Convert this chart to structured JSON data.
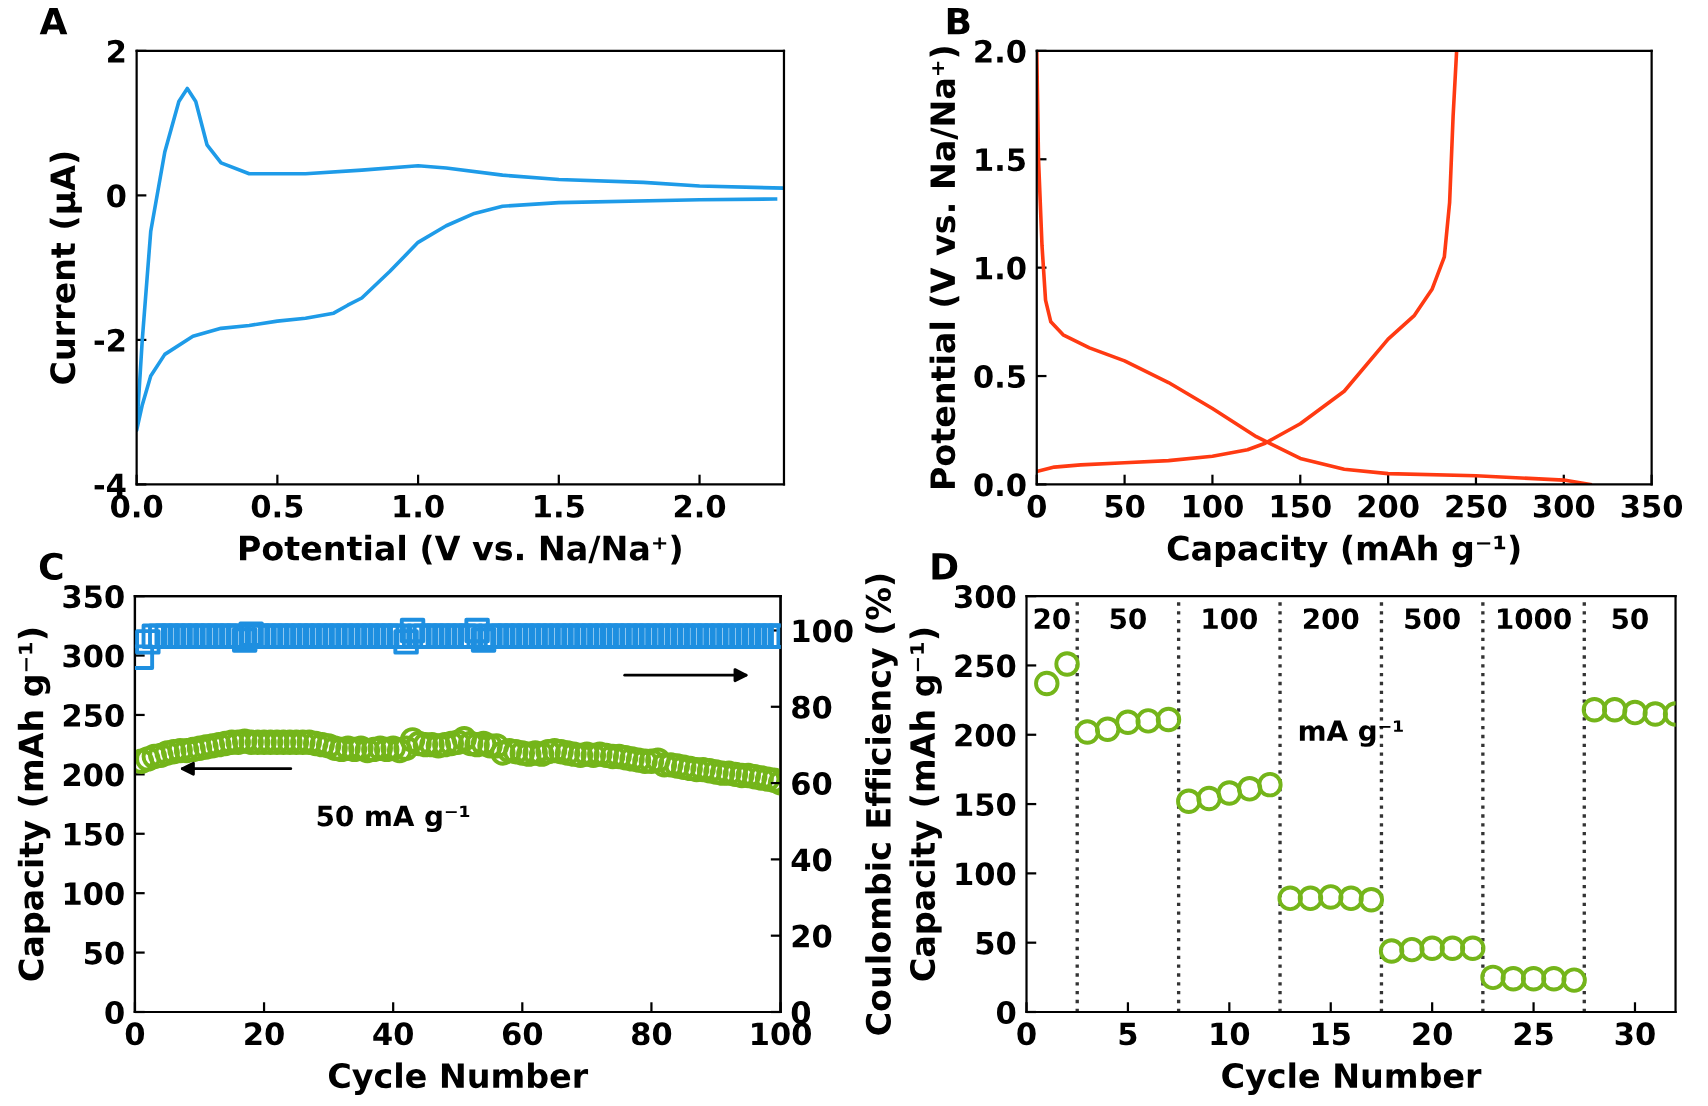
{
  "chart_data": [
    {
      "type": "line",
      "title": "A",
      "xlabel": "Potential (V vs. Na/Na⁺)",
      "ylabel": "Current (μA)",
      "xlim": [
        0,
        2.3
      ],
      "ylim": [
        -4,
        2
      ],
      "xticks": [
        {
          "value": 0,
          "label": "0.0"
        },
        {
          "value": 0.5,
          "label": "0.5"
        },
        {
          "value": 1,
          "label": "1.0"
        },
        {
          "value": 1.5,
          "label": "1.5"
        },
        {
          "value": 2,
          "label": "2.0"
        }
      ],
      "yticks": [
        -4,
        -2,
        0,
        2
      ],
      "grid": false,
      "legend": false,
      "line_style": "solid",
      "series": [
        {
          "color": "#1e9be8",
          "x": [
            2.27,
            2.0,
            1.5,
            1.3,
            1.2,
            1.1,
            1.0,
            0.9,
            0.8,
            0.75,
            0.7,
            0.6,
            0.5,
            0.4,
            0.3,
            0.2,
            0.1,
            0.05,
            0.02,
            0.0,
            0.02,
            0.05,
            0.1,
            0.15,
            0.18,
            0.21,
            0.25,
            0.3,
            0.4,
            0.6,
            0.8,
            1.0,
            1.1,
            1.3,
            1.5,
            1.8,
            2.0,
            2.3
          ],
          "values": [
            -0.05,
            -0.06,
            -0.1,
            -0.15,
            -0.25,
            -0.42,
            -0.65,
            -1.05,
            -1.42,
            -1.52,
            -1.63,
            -1.7,
            -1.74,
            -1.8,
            -1.84,
            -1.95,
            -2.2,
            -2.5,
            -2.9,
            -3.25,
            -2.0,
            -0.5,
            0.6,
            1.3,
            1.48,
            1.3,
            0.7,
            0.45,
            0.3,
            0.3,
            0.35,
            0.41,
            0.38,
            0.28,
            0.22,
            0.18,
            0.13,
            0.1
          ]
        }
      ]
    },
    {
      "type": "line",
      "title": "B",
      "xlabel": "Capacity (mAh g⁻¹)",
      "ylabel": "Potential (V vs. Na/Na⁺)",
      "xlim": [
        0,
        350
      ],
      "ylim": [
        0,
        2
      ],
      "xticks": [
        0,
        50,
        100,
        150,
        200,
        250,
        300,
        350
      ],
      "yticks": [
        {
          "value": 0,
          "label": "0.0"
        },
        {
          "value": 0.5,
          "label": "0.5"
        },
        {
          "value": 1,
          "label": "1.0"
        },
        {
          "value": 1.5,
          "label": "1.5"
        },
        {
          "value": 2,
          "label": "2.0"
        }
      ],
      "grid": false,
      "legend": false,
      "line_style": "solid",
      "series": [
        {
          "color": "#ff3a12",
          "x": [
            0,
            1,
            3,
            5,
            8,
            15,
            30,
            50,
            75,
            100,
            125,
            150,
            175,
            200,
            250,
            300,
            315
          ],
          "values": [
            2.0,
            1.5,
            1.1,
            0.85,
            0.75,
            0.69,
            0.63,
            0.57,
            0.47,
            0.35,
            0.22,
            0.12,
            0.07,
            0.05,
            0.04,
            0.02,
            0.0
          ]
        },
        {
          "color": "#ff3a12",
          "x": [
            0,
            10,
            25,
            50,
            75,
            100,
            120,
            130,
            150,
            175,
            200,
            215,
            225,
            232,
            235,
            237,
            239
          ],
          "values": [
            0.06,
            0.08,
            0.09,
            0.1,
            0.11,
            0.13,
            0.16,
            0.19,
            0.28,
            0.43,
            0.67,
            0.78,
            0.9,
            1.05,
            1.3,
            1.7,
            2.0
          ]
        }
      ]
    },
    {
      "type": "scatter",
      "title": "C",
      "xlabel": "Cycle Number",
      "ylabel": "Capacity (mAh g⁻¹)",
      "y2label": "Coulombic Efficiency (%)",
      "xlim": [
        0,
        100
      ],
      "ylim": [
        0,
        350
      ],
      "y2lim": [
        0,
        109
      ],
      "xticks": [
        0,
        20,
        40,
        60,
        80,
        100
      ],
      "yticks": [
        0,
        50,
        100,
        150,
        200,
        250,
        300,
        350
      ],
      "y2ticks": [
        0,
        20,
        40,
        60,
        80,
        100
      ],
      "grid": false,
      "legend": false,
      "annotations": [
        "50 mA g⁻¹"
      ],
      "x": [
        1,
        2,
        3,
        4,
        5,
        6,
        7,
        8,
        9,
        10,
        11,
        12,
        13,
        14,
        15,
        16,
        17,
        18,
        19,
        20,
        21,
        22,
        23,
        24,
        25,
        26,
        27,
        28,
        29,
        30,
        31,
        32,
        33,
        34,
        35,
        36,
        37,
        38,
        39,
        40,
        41,
        42,
        43,
        44,
        45,
        46,
        47,
        48,
        49,
        50,
        51,
        52,
        53,
        54,
        55,
        56,
        57,
        58,
        59,
        60,
        61,
        62,
        63,
        64,
        65,
        66,
        67,
        68,
        69,
        70,
        71,
        72,
        73,
        74,
        75,
        76,
        77,
        78,
        79,
        80,
        81,
        82,
        83,
        84,
        85,
        86,
        87,
        88,
        89,
        90,
        91,
        92,
        93,
        94,
        95,
        96,
        97,
        98,
        99,
        100
      ],
      "series": [
        {
          "color": "#1e8fe0",
          "marker": "square",
          "axis": "y2",
          "values": [
            93,
            97,
            98.5,
            98.5,
            98.5,
            98.5,
            98.5,
            98.5,
            98.5,
            98.5,
            98.5,
            98.5,
            98.5,
            98.5,
            98.5,
            98.5,
            97.5,
            99,
            98.5,
            98.5,
            98.5,
            98.5,
            98.5,
            98.5,
            98.5,
            98.5,
            98.5,
            98.5,
            98.5,
            98.5,
            98.5,
            98.5,
            98.5,
            98.5,
            98.5,
            98.5,
            98.5,
            98.5,
            98.5,
            98.5,
            98.5,
            97,
            100,
            98.5,
            98.5,
            98.5,
            98.5,
            98.5,
            98.5,
            98.5,
            98.5,
            98.5,
            100,
            97.5,
            98.5,
            98.5,
            98.5,
            98.5,
            98.5,
            98.5,
            98.5,
            98.5,
            98.5,
            98.5,
            98.5,
            98.5,
            98.5,
            98.5,
            98.5,
            98.5,
            98.5,
            98.5,
            98.5,
            98.5,
            98.5,
            98.5,
            98.5,
            98.5,
            98.5,
            98.5,
            98.5,
            98.5,
            98.5,
            98.5,
            98.5,
            98.5,
            98.5,
            98.5,
            98.5,
            98.5,
            98.5,
            98.5,
            98.5,
            98.5,
            98.5,
            98.5,
            98.5,
            98.5,
            98.5,
            98.5
          ]
        },
        {
          "color": "#74b51a",
          "marker": "circle",
          "axis": "y",
          "values": [
            211,
            213,
            215,
            216,
            218,
            219,
            220,
            220,
            221,
            222,
            223,
            224,
            225,
            226,
            227,
            227,
            228,
            227,
            227,
            227,
            227,
            227,
            227,
            227,
            227,
            227,
            227,
            226,
            225,
            224,
            222,
            221,
            222,
            221,
            222,
            220,
            221,
            222,
            221,
            222,
            220,
            222,
            229,
            226,
            225,
            225,
            224,
            225,
            226,
            227,
            230,
            226,
            225,
            226,
            224,
            224,
            218,
            220,
            219,
            218,
            217,
            218,
            217,
            219,
            220,
            219,
            218,
            217,
            216,
            217,
            216,
            217,
            216,
            215,
            215,
            214,
            213,
            212,
            211,
            211,
            212,
            208,
            208,
            207,
            206,
            205,
            204,
            204,
            203,
            202,
            201,
            201,
            200,
            199,
            199,
            198,
            197,
            196,
            195,
            193
          ]
        }
      ]
    },
    {
      "type": "scatter",
      "title": "D",
      "xlabel": "Cycle Number",
      "ylabel": "Capacity (mAh g⁻¹)",
      "xlim": [
        0,
        32
      ],
      "ylim": [
        0,
        300
      ],
      "xticks": [
        0,
        5,
        10,
        15,
        20,
        25,
        30
      ],
      "yticks": [
        0,
        50,
        100,
        150,
        200,
        250,
        300
      ],
      "grid": false,
      "legend": false,
      "marker": "circle",
      "x": [
        1,
        2,
        3,
        4,
        5,
        6,
        7,
        8,
        9,
        10,
        11,
        12,
        13,
        14,
        15,
        16,
        17,
        18,
        19,
        20,
        21,
        22,
        23,
        24,
        25,
        26,
        27,
        28,
        29,
        30,
        31,
        32
      ],
      "values": [
        237,
        251,
        202,
        204,
        209,
        210,
        211,
        152,
        154,
        158,
        161,
        164,
        82,
        82,
        83,
        82,
        81,
        44,
        45,
        46,
        46,
        46,
        25,
        24,
        24,
        24,
        23,
        218,
        218,
        216,
        215,
        215
      ],
      "color": "#74b51a",
      "ref_lines": [
        {
          "axis": "x",
          "value": 2.5,
          "color": "#333333",
          "line_style": "dotted"
        },
        {
          "axis": "x",
          "value": 7.5,
          "color": "#333333",
          "line_style": "dotted"
        },
        {
          "axis": "x",
          "value": 12.5,
          "color": "#333333",
          "line_style": "dotted"
        },
        {
          "axis": "x",
          "value": 17.5,
          "color": "#333333",
          "line_style": "dotted"
        },
        {
          "axis": "x",
          "value": 22.5,
          "color": "#333333",
          "line_style": "dotted"
        },
        {
          "axis": "x",
          "value": 27.5,
          "color": "#333333",
          "line_style": "dotted"
        }
      ],
      "annotations": [
        "20",
        "50",
        "100",
        "200",
        "500",
        "1000",
        "50",
        "mA g⁻¹"
      ]
    }
  ]
}
